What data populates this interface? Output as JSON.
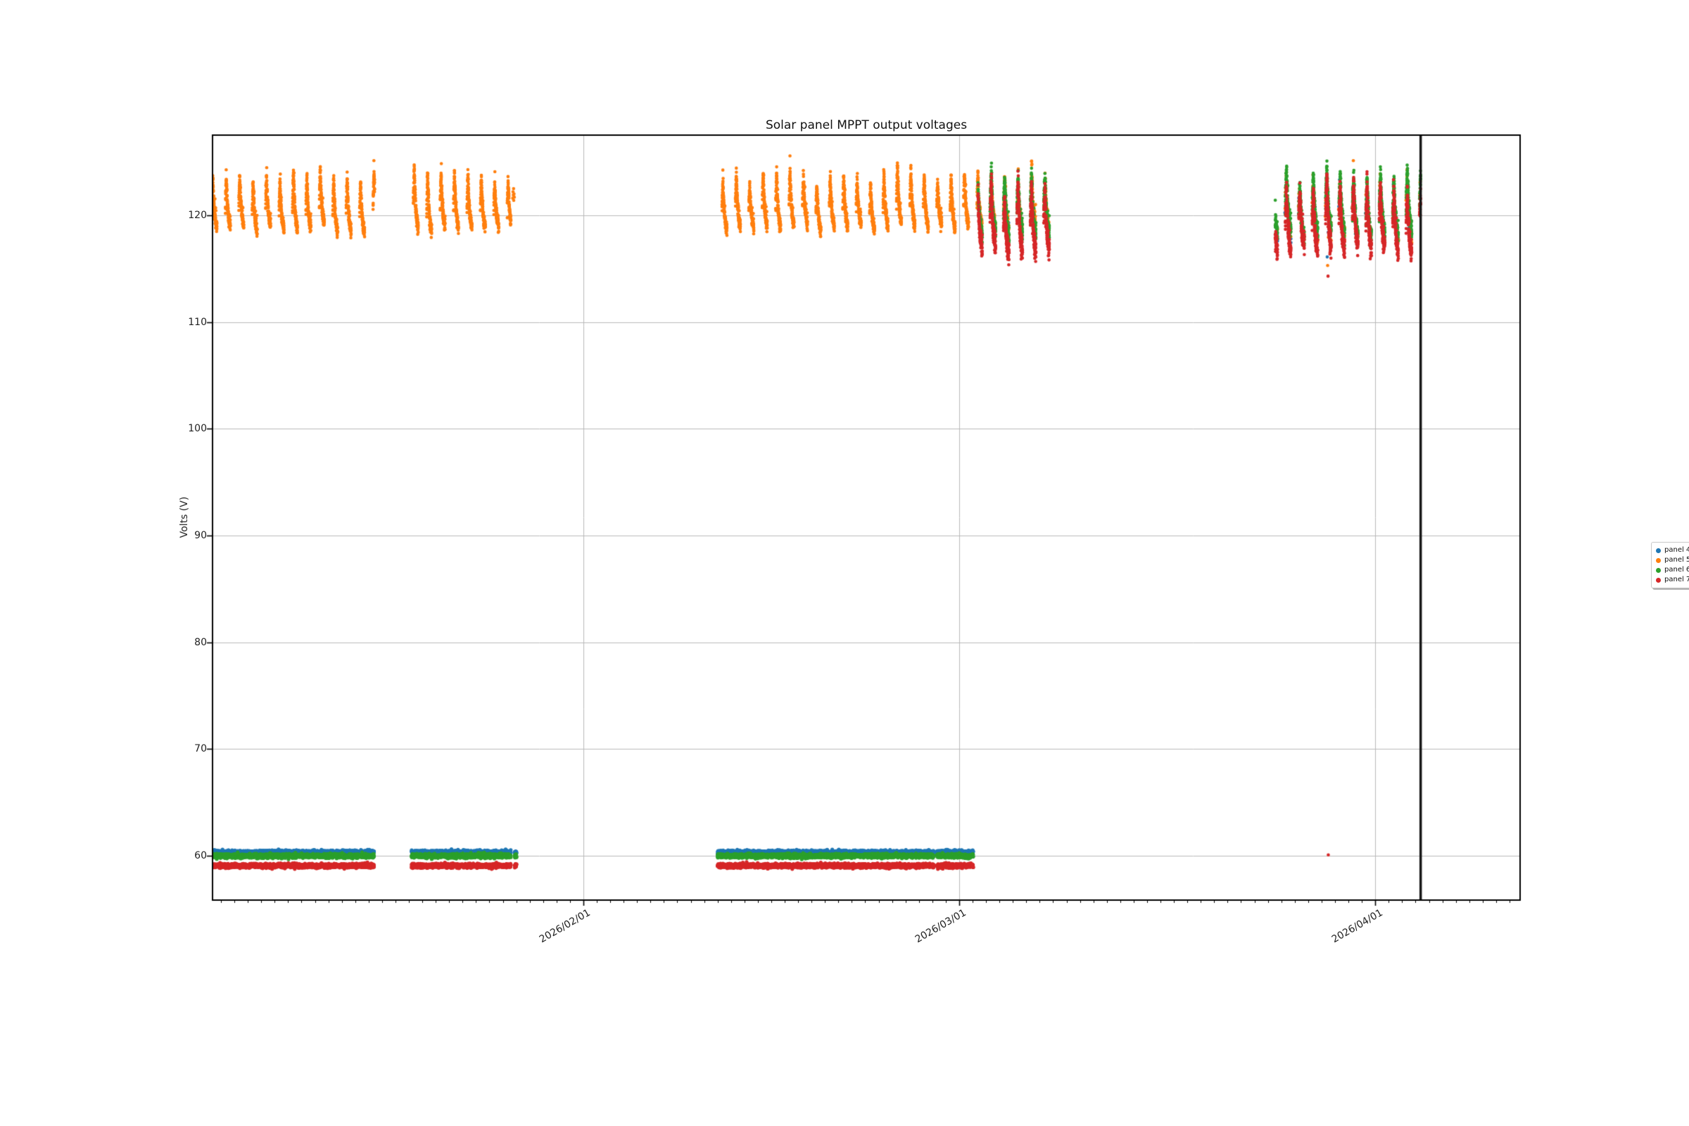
{
  "chart_data": {
    "type": "scatter",
    "title": "Solar panel MPPT output voltages",
    "xlabel": "",
    "ylabel": "Volts (V)",
    "x_axis": {
      "unit": "days_since_2026-01-01",
      "range": [
        3.37,
        100.79
      ],
      "major_ticks": [
        {
          "day": 31,
          "label": "2026/02/01"
        },
        {
          "day": 59,
          "label": "2026/03/01"
        },
        {
          "day": 90,
          "label": "2026/04/01"
        }
      ],
      "minor_tick_step_days": 1,
      "minor_tick_range": [
        4,
        100
      ],
      "tick_label_rotation_deg": 30
    },
    "y_axis": {
      "range": [
        55.86,
        127.51
      ],
      "ticks": [
        {
          "v": 60,
          "label": "60"
        },
        {
          "v": 70,
          "label": "70"
        },
        {
          "v": 80,
          "label": "80"
        },
        {
          "v": 90,
          "label": "90"
        },
        {
          "v": 100,
          "label": "100"
        },
        {
          "v": 110,
          "label": "110"
        },
        {
          "v": 120,
          "label": "120"
        }
      ]
    },
    "grid": {
      "color": "#bababa",
      "horizontal_at": [
        60,
        70,
        80,
        90,
        100,
        110,
        120
      ],
      "vertical_at_days": [
        31,
        59,
        90
      ]
    },
    "vline": {
      "day": 93.38,
      "color": "#161616",
      "width": 3.5
    },
    "marker": {
      "radius": 2.3,
      "flat_radius": 2.6
    },
    "legend": {
      "entries": [
        {
          "label": "panel 4",
          "color": "#1f77b4"
        },
        {
          "label": "panel 5",
          "color": "#ff7f0e"
        },
        {
          "label": "panel 6",
          "color": "#2ca02c"
        },
        {
          "label": "panel 7",
          "color": "#d62728"
        }
      ]
    },
    "profiles": {
      "winter": {
        "base": 118.9,
        "base_jitter": 0.25,
        "amp_mean": 4.7,
        "amp_sd": 0.5,
        "rise_frac": 0.18,
        "decay": 0.33,
        "start_delta": 1.6,
        "end_drop": 0.4,
        "noise": 0.3,
        "sunrise": 0.33,
        "sunset": 0.7,
        "step_min": 5,
        "up_outlier_p": 0.03
      },
      "cluster_mid": {
        "base": 119.0,
        "base_jitter": 0.3,
        "amp_mean": 4.4,
        "amp_sd": 0.6,
        "rise_frac": 0.2,
        "decay": 0.3,
        "start_delta": 1.2,
        "end_drop": 1.0,
        "noise": 0.45,
        "sunrise": 0.3,
        "sunset": 0.72,
        "step_min": 6,
        "up_outlier_p": 0.02
      },
      "cluster_green": {
        "base": 119.15,
        "base_jitter": 0.3,
        "amp_mean": 4.4,
        "amp_sd": 0.6,
        "rise_frac": 0.22,
        "decay": 0.3,
        "start_delta": 1.2,
        "end_drop": 1.3,
        "noise": 0.45,
        "sunrise": 0.3,
        "sunset": 0.72,
        "step_min": 5,
        "up_outlier_p": 0.02
      },
      "cluster_red": {
        "base": 118.35,
        "base_jitter": 0.3,
        "amp_mean": 4.5,
        "amp_sd": 0.7,
        "rise_frac": 0.22,
        "decay": 0.3,
        "start_delta": 1.0,
        "end_drop": 1.9,
        "noise": 0.5,
        "sunrise": 0.3,
        "sunset": 0.72,
        "step_min": 5,
        "up_outlier_p": 0.02
      },
      "cluster_late": {
        "base": 119.0,
        "base_jitter": 0.3,
        "amp_mean": 4.3,
        "amp_sd": 0.6,
        "rise_frac": 0.2,
        "decay": 0.3,
        "start_delta": 1.2,
        "end_drop": 1.5,
        "noise": 0.5,
        "sunrise": 0.27,
        "sunset": 0.73,
        "step_min": 6,
        "up_outlier_p": 0.02
      }
    },
    "series": [
      {
        "name": "panel 4",
        "color": "#1f77b4",
        "z": 0,
        "flat_segments": [
          {
            "start": 3.37,
            "end": 15.4,
            "volts": 60.33
          },
          {
            "start": 18.2,
            "end": 25.6,
            "volts": 60.33
          },
          {
            "start": 25.88,
            "end": 26.02,
            "volts": 60.33
          },
          {
            "start": 41.0,
            "end": 57.1,
            "volts": 60.33
          },
          {
            "start": 57.35,
            "end": 60.05,
            "volts": 60.33
          }
        ],
        "daylight_segments": [
          {
            "start": 60.4,
            "end": 65.9,
            "profile": "cluster_mid",
            "density": 0.06
          },
          {
            "start": 82.55,
            "end": 93.38,
            "profile": "cluster_late",
            "density": 0.05
          }
        ],
        "outlier_points": [
          {
            "day": 86.42,
            "v": 116.1
          }
        ]
      },
      {
        "name": "panel 5",
        "color": "#ff7f0e",
        "z": 1,
        "flat_segments": [],
        "daylight_segments": [
          {
            "start": 3.37,
            "end": 15.45,
            "profile": "winter",
            "density": 1
          },
          {
            "start": 18.2,
            "end": 25.6,
            "profile": "winter",
            "density": 1
          },
          {
            "start": 41.0,
            "end": 60.4,
            "profile": "winter",
            "density": 1
          },
          {
            "start": 60.4,
            "end": 65.9,
            "profile": "winter",
            "density": 0.55
          },
          {
            "start": 82.55,
            "end": 93.38,
            "profile": "cluster_late",
            "density": 0.16
          }
        ],
        "outlier_points": [
          {
            "day": 25.74,
            "v": 121.6
          },
          {
            "day": 25.76,
            "v": 122.2
          },
          {
            "day": 25.78,
            "v": 121.9
          },
          {
            "day": 25.8,
            "v": 122.5
          },
          {
            "day": 25.81,
            "v": 121.4
          },
          {
            "day": 25.83,
            "v": 122.0
          },
          {
            "day": 25.85,
            "v": 121.7
          },
          {
            "day": 86.45,
            "v": 115.3
          }
        ]
      },
      {
        "name": "panel 6",
        "color": "#2ca02c",
        "z": 2,
        "flat_segments": [
          {
            "start": 3.37,
            "end": 15.4,
            "volts": 60.0
          },
          {
            "start": 18.2,
            "end": 25.6,
            "volts": 60.0
          },
          {
            "start": 25.88,
            "end": 26.02,
            "volts": 60.0
          },
          {
            "start": 41.0,
            "end": 57.1,
            "volts": 60.0
          },
          {
            "start": 57.35,
            "end": 60.05,
            "volts": 60.0
          }
        ],
        "daylight_segments": [
          {
            "start": 60.4,
            "end": 65.9,
            "profile": "cluster_green",
            "density": 1
          },
          {
            "start": 82.55,
            "end": 93.38,
            "profile": "cluster_green",
            "density": 1
          }
        ],
        "outlier_points": []
      },
      {
        "name": "panel 7",
        "color": "#d62728",
        "z": 3,
        "flat_segments": [
          {
            "start": 3.37,
            "end": 15.4,
            "volts": 59.08
          },
          {
            "start": 18.2,
            "end": 25.6,
            "volts": 59.08
          },
          {
            "start": 25.88,
            "end": 26.02,
            "volts": 59.08
          },
          {
            "start": 41.0,
            "end": 57.1,
            "volts": 59.08
          },
          {
            "start": 57.35,
            "end": 60.05,
            "volts": 59.08
          }
        ],
        "daylight_segments": [
          {
            "start": 60.4,
            "end": 65.9,
            "profile": "cluster_red",
            "density": 1
          },
          {
            "start": 82.55,
            "end": 93.38,
            "profile": "cluster_red",
            "density": 1
          }
        ],
        "outlier_points": [
          {
            "day": 86.48,
            "v": 114.3
          },
          {
            "day": 86.5,
            "v": 60.1
          }
        ]
      }
    ]
  }
}
